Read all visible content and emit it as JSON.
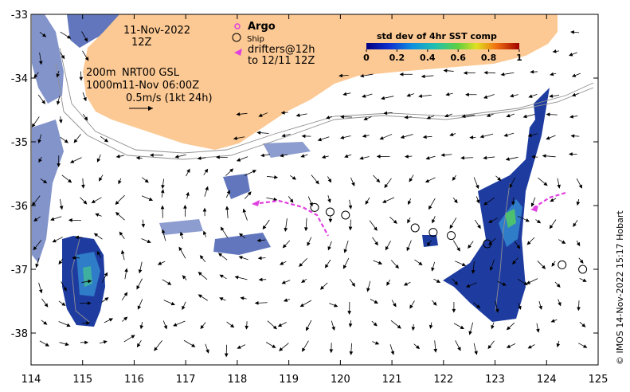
{
  "map": {
    "x_ticks": [
      "114",
      "115",
      "116",
      "117",
      "118",
      "119",
      "120",
      "121",
      "122",
      "123",
      "124",
      "125"
    ],
    "y_ticks": [
      "-33",
      "-34",
      "-35",
      "-36",
      "-37",
      "-38"
    ],
    "x_range": [
      114,
      125
    ],
    "y_range": [
      -38.5,
      -33
    ]
  },
  "annotations": {
    "date": "11-Nov-2022",
    "hour": "12Z",
    "isobath_200": "200m",
    "isobath_1000": "1000m",
    "product": "NRT00 GSL",
    "product_time": "11-Nov 06:00Z",
    "scale_arrow": "0.5m/s (1kt 24h)"
  },
  "legend": {
    "argo": "Argo",
    "ship": "Ship",
    "drifters": "drifters@12h",
    "drifters_to": "to 12/11 12Z",
    "argo_color": "#e040e0",
    "drifter_color": "#e040e0"
  },
  "colorbar": {
    "title": "std dev of 4hr SST comp",
    "ticks": [
      "0",
      "0.2",
      "0.4",
      "0.6",
      "0.8",
      "1"
    ]
  },
  "credit": "© IMOS 14-Nov-2022 15:17 Hobart",
  "colors": {
    "land": "#fcc893",
    "ocean": "#ffffff",
    "sst_low": "#1e3ca0",
    "arrow": "#000000"
  },
  "ship_positions": [
    {
      "lon": 119.5,
      "lat": -36.03
    },
    {
      "lon": 119.8,
      "lat": -36.1
    },
    {
      "lon": 120.1,
      "lat": -36.15
    },
    {
      "lon": 121.45,
      "lat": -36.35
    },
    {
      "lon": 121.8,
      "lat": -36.42
    },
    {
      "lon": 122.15,
      "lat": -36.47
    },
    {
      "lon": 122.85,
      "lat": -36.6
    },
    {
      "lon": 124.3,
      "lat": -36.93
    },
    {
      "lon": 124.7,
      "lat": -37.0
    }
  ]
}
